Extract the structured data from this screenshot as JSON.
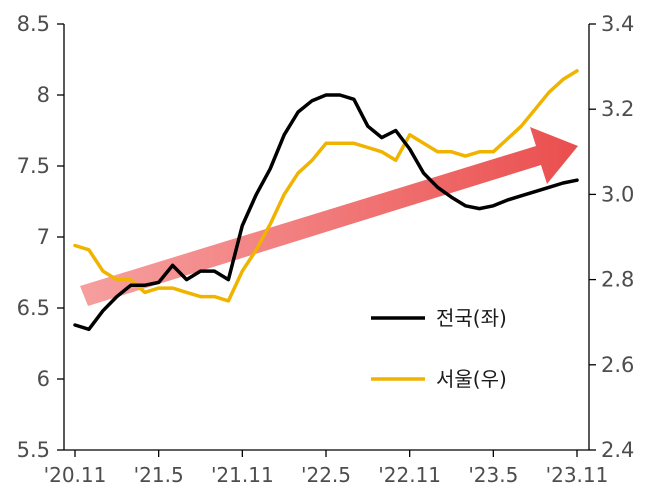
{
  "chart_data": {
    "type": "line",
    "x": [
      "'20.11",
      "'20.12",
      "'21.1",
      "'21.2",
      "'21.3",
      "'21.4",
      "'21.5",
      "'21.6",
      "'21.7",
      "'21.8",
      "'21.9",
      "'21.10",
      "'21.11",
      "'21.12",
      "'22.1",
      "'22.2",
      "'22.3",
      "'22.4",
      "'22.5",
      "'22.6",
      "'22.7",
      "'22.8",
      "'22.9",
      "'22.10",
      "'22.11",
      "'22.12",
      "'23.1",
      "'23.2",
      "'23.3",
      "'23.4",
      "'23.5",
      "'23.6",
      "'23.7",
      "'23.8",
      "'23.9",
      "'23.10",
      "'23.11"
    ],
    "x_tick_labels": [
      "'20.11",
      "'21.5",
      "'21.11",
      "'22.5",
      "'22.11",
      "'23.5",
      "'23.11"
    ],
    "y_left": {
      "ylim": [
        5.5,
        8.5
      ],
      "ticks": [
        "5.5",
        "6",
        "6.5",
        "7",
        "7.5",
        "8",
        "8.5"
      ]
    },
    "y_right": {
      "ylim": [
        2.4,
        3.4
      ],
      "ticks": [
        "2.4",
        "2.6",
        "2.8",
        "3.0",
        "3.2",
        "3.4"
      ]
    },
    "series": [
      {
        "name": "전국(좌)",
        "axis": "left",
        "color": "#000000",
        "values": [
          6.38,
          6.35,
          6.48,
          6.58,
          6.66,
          6.66,
          6.68,
          6.8,
          6.7,
          6.76,
          6.76,
          6.7,
          7.08,
          7.3,
          7.48,
          7.72,
          7.88,
          7.96,
          8.0,
          8.0,
          7.97,
          7.78,
          7.7,
          7.75,
          7.62,
          7.45,
          7.35,
          7.28,
          7.22,
          7.2,
          7.22,
          7.26,
          7.29,
          7.32,
          7.35,
          7.38,
          7.4
        ]
      },
      {
        "name": "서울(우)",
        "axis": "right",
        "color": "#f0b400",
        "values": [
          2.88,
          2.87,
          2.82,
          2.8,
          2.8,
          2.77,
          2.78,
          2.78,
          2.77,
          2.76,
          2.76,
          2.75,
          2.82,
          2.87,
          2.93,
          3.0,
          3.05,
          3.08,
          3.12,
          3.12,
          3.12,
          3.11,
          3.1,
          3.08,
          3.14,
          3.12,
          3.1,
          3.1,
          3.09,
          3.1,
          3.1,
          3.13,
          3.16,
          3.2,
          3.24,
          3.27,
          3.29
        ]
      }
    ],
    "annotation": {
      "type": "trend-arrow",
      "direction": "upward",
      "color": "#ee4a4a"
    },
    "legend": {
      "placement": "center-right"
    },
    "grid": false
  }
}
